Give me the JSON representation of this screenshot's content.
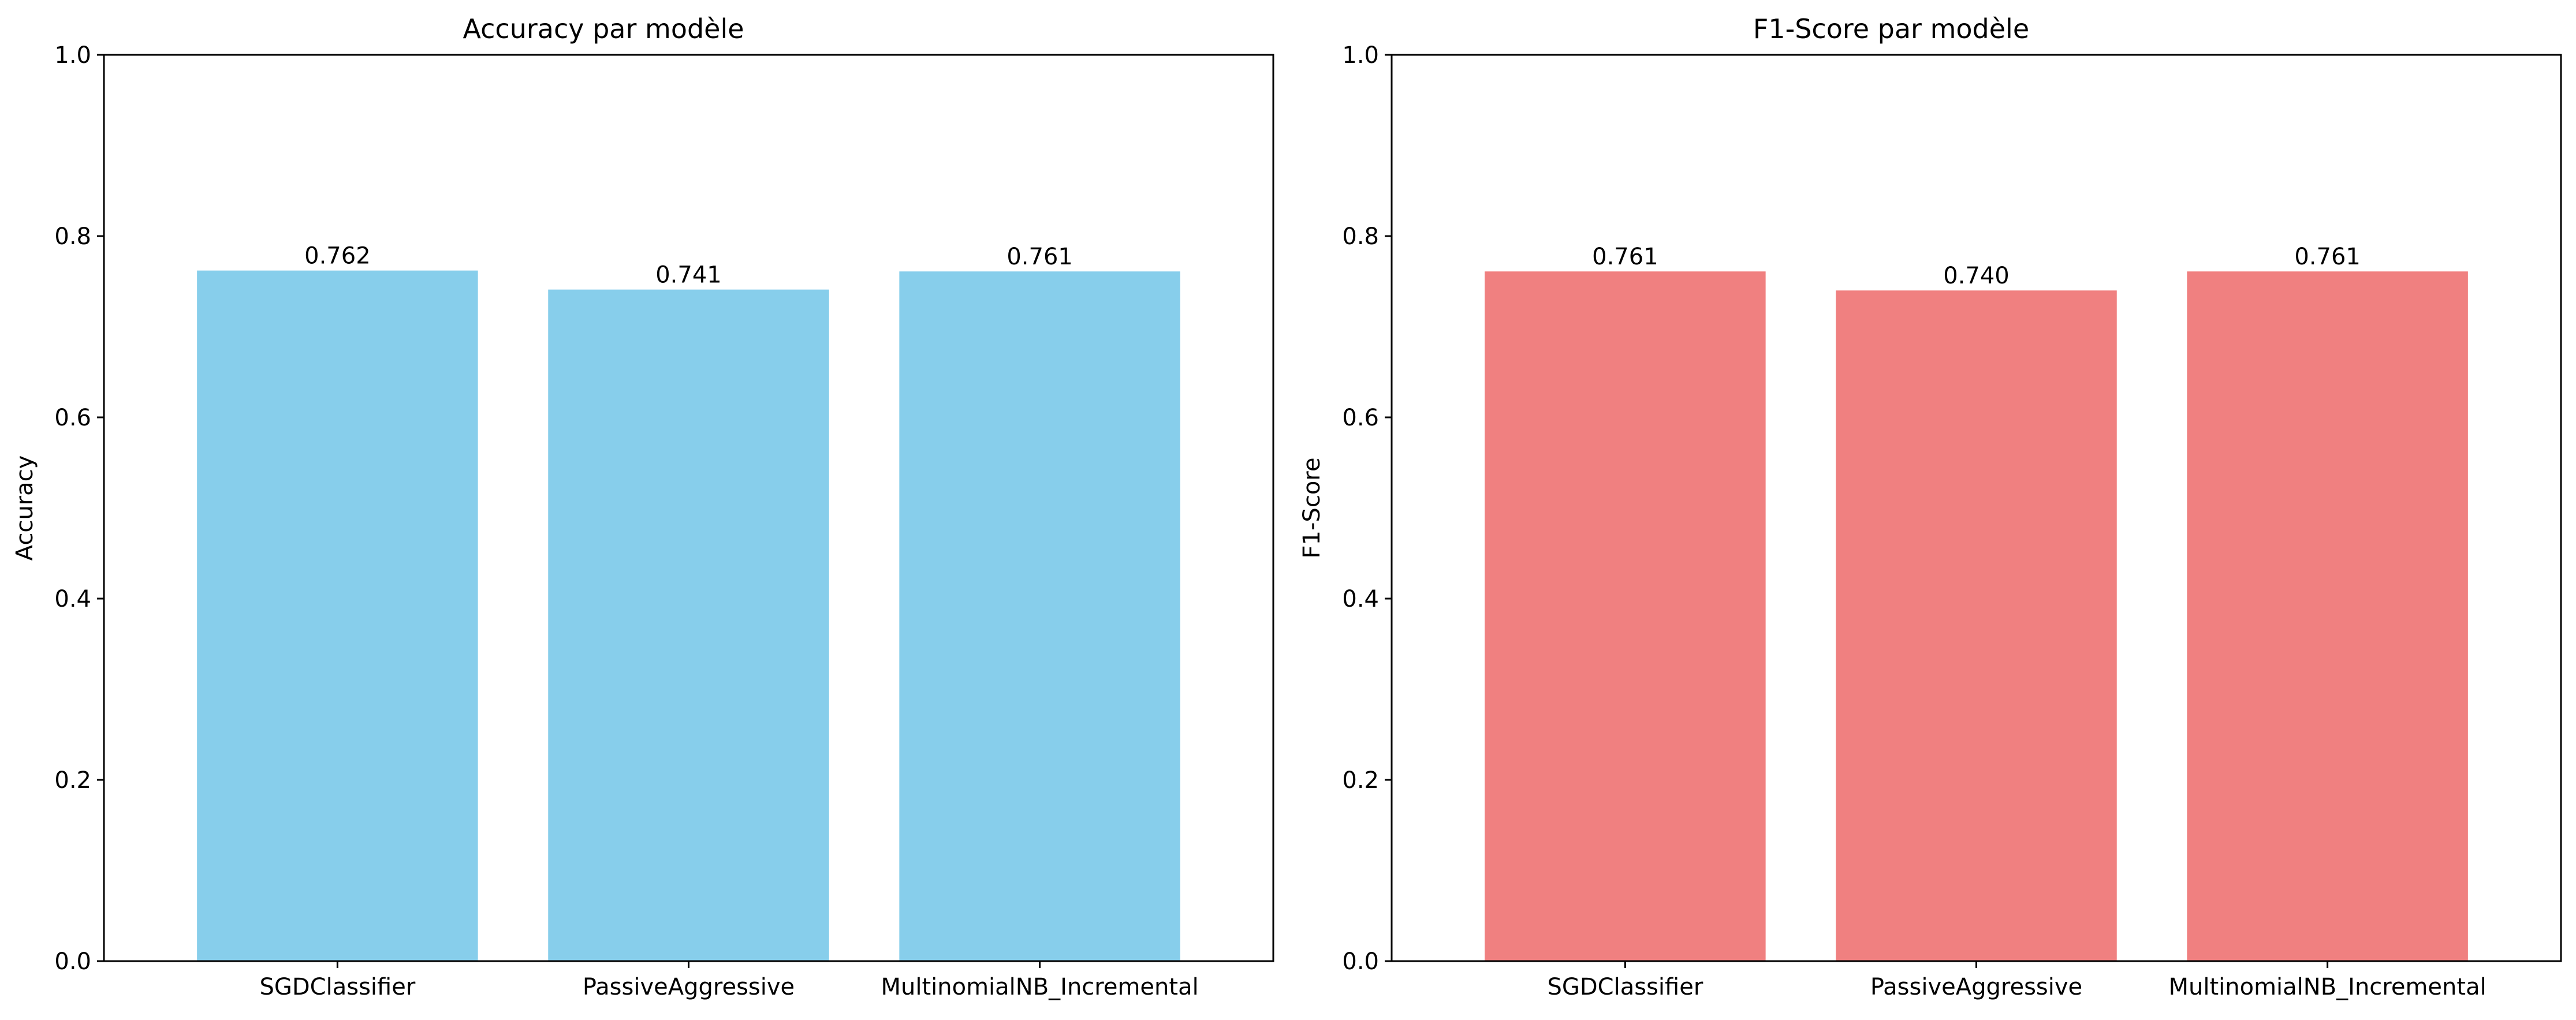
{
  "chart_data": [
    {
      "type": "bar",
      "title": "Accuracy par modèle",
      "xlabel": "",
      "ylabel": "Accuracy",
      "categories": [
        "SGDClassifier",
        "PassiveAggressive",
        "MultinomialNB_Incremental"
      ],
      "values": [
        0.762,
        0.741,
        0.761
      ],
      "value_labels": [
        "0.762",
        "0.741",
        "0.761"
      ],
      "ylim": [
        0,
        1.0
      ],
      "yticks": [
        0.0,
        0.2,
        0.4,
        0.6,
        0.8,
        1.0
      ],
      "ytick_labels": [
        "0.0",
        "0.2",
        "0.4",
        "0.6",
        "0.8",
        "1.0"
      ],
      "bar_color": "#87CEEB",
      "grid": false,
      "legend": "none"
    },
    {
      "type": "bar",
      "title": "F1-Score par modèle",
      "xlabel": "",
      "ylabel": "F1-Score",
      "categories": [
        "SGDClassifier",
        "PassiveAggressive",
        "MultinomialNB_Incremental"
      ],
      "values": [
        0.761,
        0.74,
        0.761
      ],
      "value_labels": [
        "0.761",
        "0.740",
        "0.761"
      ],
      "ylim": [
        0,
        1.0
      ],
      "yticks": [
        0.0,
        0.2,
        0.4,
        0.6,
        0.8,
        1.0
      ],
      "ytick_labels": [
        "0.0",
        "0.2",
        "0.4",
        "0.6",
        "0.8",
        "1.0"
      ],
      "bar_color": "#F08080",
      "grid": false,
      "legend": "none"
    }
  ]
}
